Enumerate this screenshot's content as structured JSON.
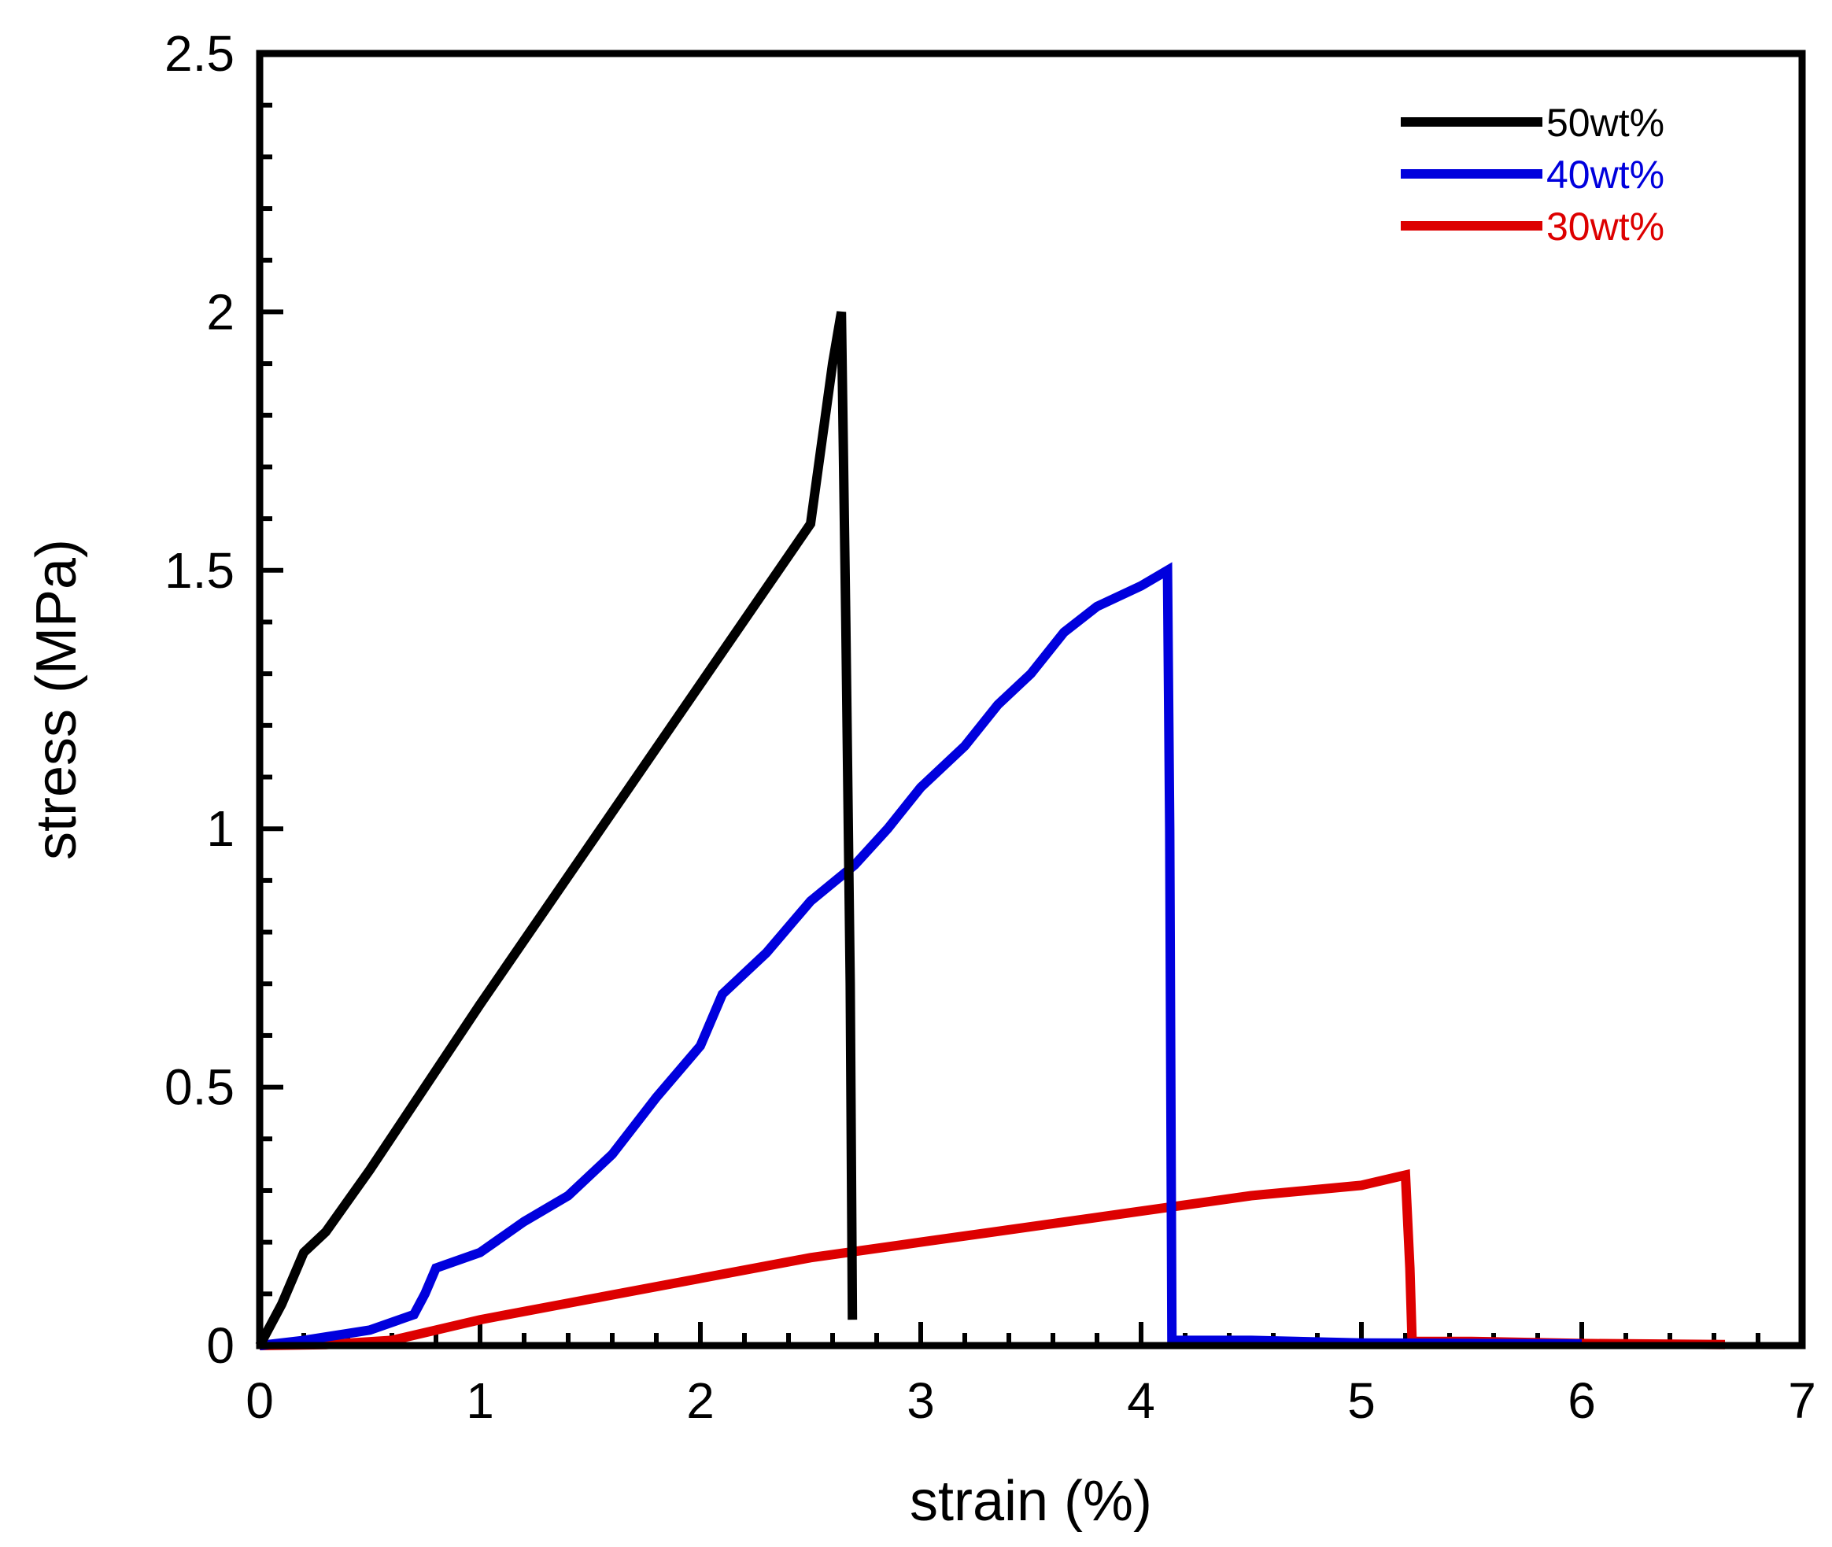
{
  "chart_data": {
    "type": "line",
    "title": "",
    "xlabel": "strain (%)",
    "ylabel": "stress (MPa)",
    "xlim": [
      0,
      7
    ],
    "ylim": [
      0,
      2.5
    ],
    "xticks": [
      0,
      1,
      2,
      3,
      4,
      5,
      6,
      7
    ],
    "xtick_labels": [
      "0",
      "1",
      "2",
      "3",
      "4",
      "5",
      "6",
      "7"
    ],
    "yticks": [
      0,
      0.5,
      1,
      1.5,
      2,
      2.5
    ],
    "ytick_labels": [
      "0",
      "0.5",
      "1",
      "1.5",
      "2",
      "2.5"
    ],
    "grid": false,
    "legend_position": "top-right",
    "series": [
      {
        "name": "50wt%",
        "color": "#000000",
        "points": [
          [
            0,
            0
          ],
          [
            0.1,
            0.08
          ],
          [
            0.2,
            0.18
          ],
          [
            0.3,
            0.22
          ],
          [
            0.5,
            0.34
          ],
          [
            1.0,
            0.66
          ],
          [
            1.5,
            0.97
          ],
          [
            2.0,
            1.28
          ],
          [
            2.5,
            1.59
          ],
          [
            2.6,
            1.9
          ],
          [
            2.64,
            2.0
          ],
          [
            2.66,
            1.4
          ],
          [
            2.68,
            0.7
          ],
          [
            2.69,
            0.05
          ]
        ]
      },
      {
        "name": "40wt%",
        "color": "#0000dd",
        "points": [
          [
            0,
            0
          ],
          [
            0.2,
            0.01
          ],
          [
            0.5,
            0.03
          ],
          [
            0.7,
            0.06
          ],
          [
            0.75,
            0.1
          ],
          [
            0.8,
            0.15
          ],
          [
            1.0,
            0.18
          ],
          [
            1.2,
            0.24
          ],
          [
            1.4,
            0.29
          ],
          [
            1.6,
            0.37
          ],
          [
            1.8,
            0.48
          ],
          [
            2.0,
            0.58
          ],
          [
            2.1,
            0.68
          ],
          [
            2.3,
            0.76
          ],
          [
            2.5,
            0.86
          ],
          [
            2.7,
            0.93
          ],
          [
            2.85,
            1.0
          ],
          [
            3.0,
            1.08
          ],
          [
            3.2,
            1.16
          ],
          [
            3.35,
            1.24
          ],
          [
            3.5,
            1.3
          ],
          [
            3.65,
            1.38
          ],
          [
            3.8,
            1.43
          ],
          [
            4.0,
            1.47
          ],
          [
            4.12,
            1.5
          ],
          [
            4.13,
            1.0
          ],
          [
            4.14,
            0.01
          ],
          [
            4.5,
            0.01
          ],
          [
            5.0,
            0.005
          ],
          [
            6.0,
            0.003
          ]
        ]
      },
      {
        "name": "30wt%",
        "color": "#dd0000",
        "points": [
          [
            0,
            0
          ],
          [
            0.3,
            0.002
          ],
          [
            0.6,
            0.01
          ],
          [
            0.8,
            0.03
          ],
          [
            1.0,
            0.05
          ],
          [
            1.5,
            0.09
          ],
          [
            2.0,
            0.13
          ],
          [
            2.5,
            0.17
          ],
          [
            3.0,
            0.2
          ],
          [
            3.5,
            0.23
          ],
          [
            4.0,
            0.26
          ],
          [
            4.5,
            0.29
          ],
          [
            5.0,
            0.31
          ],
          [
            5.2,
            0.33
          ],
          [
            5.22,
            0.15
          ],
          [
            5.23,
            0.008
          ],
          [
            5.5,
            0.008
          ],
          [
            6.0,
            0.004
          ],
          [
            6.65,
            0.002
          ]
        ]
      }
    ]
  }
}
